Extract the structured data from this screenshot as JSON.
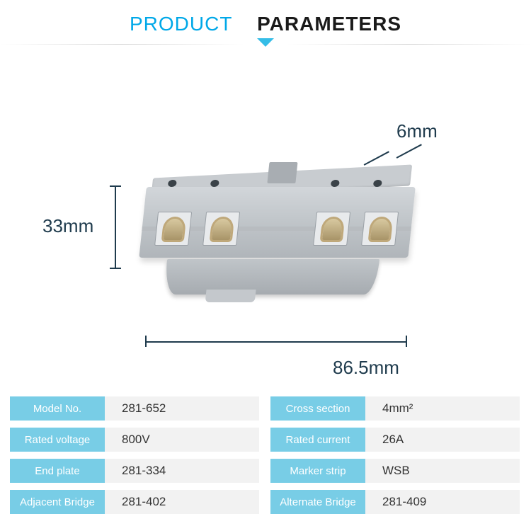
{
  "header": {
    "title_part1": "PRODUCT",
    "title_part2": "PARAMETERS",
    "accent_color": "#00a8e8",
    "text_color": "#1a1a1a",
    "chevron_color": "#35bde7"
  },
  "dimensions": {
    "height_label": "33mm",
    "width_label": "86.5mm",
    "depth_label": "6mm",
    "line_color": "#1f3b4d",
    "label_fontsize": 26
  },
  "product_render": {
    "body_gradient": [
      "#d2d6da",
      "#c0c5c9",
      "#b0b5ba"
    ],
    "hole_color": "#3a4248",
    "spring_color": "#bfa87a",
    "window_bg": "#e8eaec",
    "holes_count": 4,
    "spring_windows_count": 4
  },
  "specs": {
    "label_bg": "#78cde6",
    "label_text_color": "#ffffff",
    "value_bg": "#f2f2f2",
    "value_text_color": "#333333",
    "rows": [
      {
        "label": "Model No.",
        "value": "281-652"
      },
      {
        "label": "Cross section",
        "value": "4mm²"
      },
      {
        "label": "Rated voltage",
        "value": "800V"
      },
      {
        "label": "Rated current",
        "value": "26A"
      },
      {
        "label": "End plate",
        "value": "281-334"
      },
      {
        "label": "Marker strip",
        "value": "WSB"
      },
      {
        "label": "Adjacent Bridge",
        "value": "281-402"
      },
      {
        "label": "Alternate Bridge",
        "value": "281-409"
      }
    ]
  }
}
